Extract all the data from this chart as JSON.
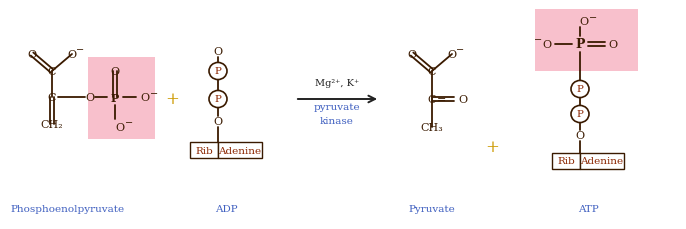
{
  "bg_color": "#ffffff",
  "pink_color": "#f8c0cc",
  "blue_label": "#4060c0",
  "arrow_color": "#333333",
  "bond_color": "#3a1a00",
  "text_color": "#3a1a00",
  "red_brown": "#8b2500",
  "label_pep": "Phosphoenolpyruvate",
  "label_adp": "ADP",
  "label_pyruvate": "Pyruvate",
  "label_atp": "ATP"
}
